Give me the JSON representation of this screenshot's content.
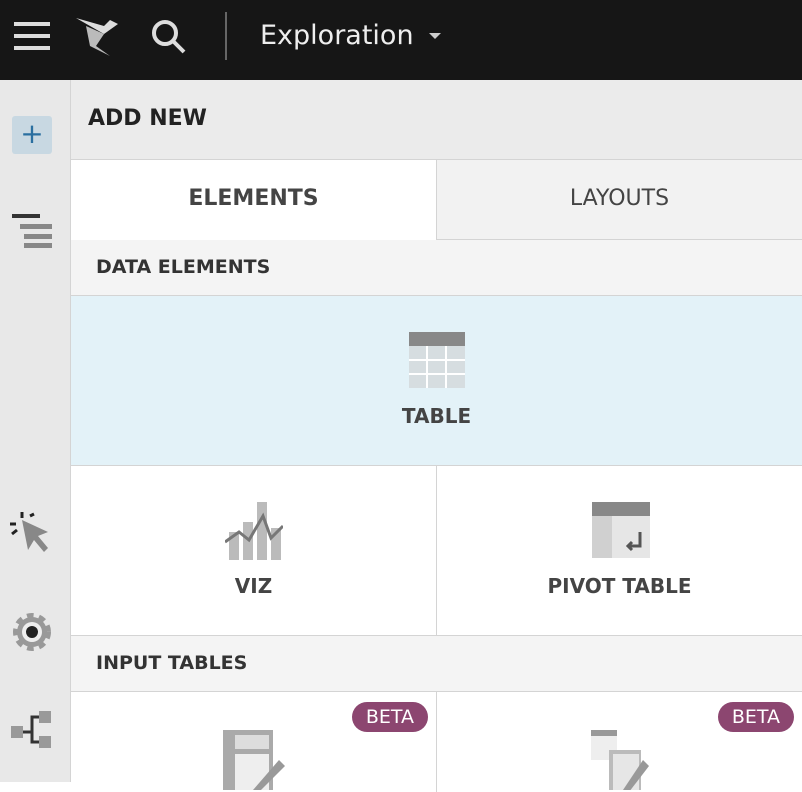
{
  "topbar": {
    "title": "Exploration",
    "icons": [
      "menu-icon",
      "logo-icon",
      "search-icon",
      "chevron-down-icon"
    ]
  },
  "rail": {
    "icons": [
      "plus-icon",
      "outline-icon",
      "interaction-icon",
      "settings-icon",
      "lineage-icon"
    ]
  },
  "panel": {
    "header": "ADD NEW",
    "tabs": [
      {
        "label": "ELEMENTS",
        "active": true
      },
      {
        "label": "LAYOUTS",
        "active": false
      }
    ],
    "sections": [
      {
        "title": "DATA ELEMENTS",
        "items": [
          {
            "label": "TABLE",
            "hovered": true
          },
          {
            "label": "VIZ"
          },
          {
            "label": "PIVOT TABLE"
          }
        ]
      },
      {
        "title": "INPUT TABLES",
        "items": [
          {
            "badge": "BETA"
          },
          {
            "badge": "BETA"
          }
        ]
      }
    ]
  }
}
